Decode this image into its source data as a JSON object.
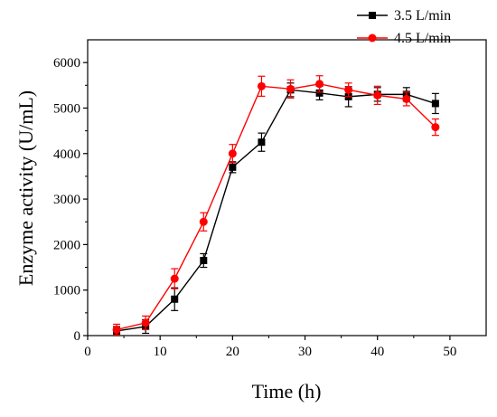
{
  "chart_data": {
    "type": "line",
    "xlabel": "Time (h)",
    "ylabel": "Enzyme activity (U/mL)",
    "xlim": [
      0,
      55
    ],
    "ylim": [
      0,
      6500
    ],
    "xticks": [
      0,
      10,
      20,
      30,
      40,
      50
    ],
    "yticks": [
      0,
      1000,
      2000,
      3000,
      4000,
      5000,
      6000
    ],
    "grid": false,
    "legend_position": "top-right",
    "series": [
      {
        "name": "3.5 L/min",
        "color": "#000000",
        "marker": "square",
        "x": [
          4,
          8,
          12,
          16,
          20,
          24,
          28,
          32,
          36,
          40,
          44,
          48
        ],
        "y": [
          100,
          200,
          800,
          1650,
          3700,
          4250,
          5400,
          5330,
          5250,
          5300,
          5300,
          5100
        ],
        "error": [
          100,
          150,
          250,
          150,
          120,
          200,
          150,
          150,
          220,
          150,
          150,
          220
        ]
      },
      {
        "name": "4.5 L/min",
        "color": "#ff0000",
        "marker": "circle",
        "x": [
          4,
          8,
          12,
          16,
          20,
          24,
          28,
          32,
          36,
          40,
          44,
          48
        ],
        "y": [
          130,
          280,
          1250,
          2500,
          4000,
          5480,
          5420,
          5530,
          5400,
          5280,
          5200,
          4580
        ],
        "error": [
          120,
          150,
          220,
          200,
          200,
          220,
          200,
          180,
          150,
          200,
          150,
          180
        ]
      }
    ]
  }
}
